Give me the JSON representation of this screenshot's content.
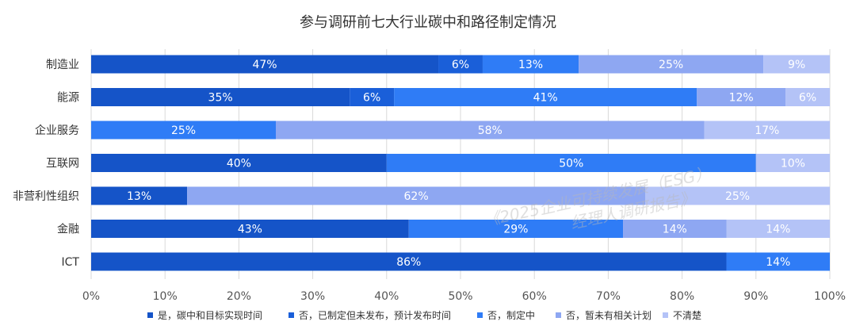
{
  "chart_data": {
    "type": "bar",
    "orientation": "horizontal",
    "stacked": true,
    "title": "参与调研前七大行业碳中和路径制定情况",
    "categories": [
      "制造业",
      "能源",
      "企业服务",
      "互联网",
      "非营利性组织",
      "金融",
      "ICT"
    ],
    "series": [
      {
        "name": "是，碳中和目标实现时间",
        "color": "#1554c8",
        "values": [
          47,
          35,
          0,
          40,
          13,
          43,
          86
        ]
      },
      {
        "name": "否，已制定但未发布，预计发布时间",
        "color": "#1a5fd9",
        "values": [
          6,
          6,
          0,
          0,
          0,
          0,
          0
        ]
      },
      {
        "name": "否，制定中",
        "color": "#2f7cf6",
        "values": [
          13,
          41,
          25,
          50,
          0,
          29,
          14
        ]
      },
      {
        "name": "否，暂未有相关计划",
        "color": "#8ea7f2",
        "values": [
          25,
          12,
          58,
          0,
          62,
          14,
          0
        ]
      },
      {
        "name": "不清楚",
        "color": "#b4c3f7",
        "values": [
          9,
          6,
          17,
          10,
          25,
          14,
          0
        ]
      }
    ],
    "xlim": [
      0,
      100
    ],
    "xticks": [
      "0%",
      "10%",
      "20%",
      "30%",
      "40%",
      "50%",
      "60%",
      "70%",
      "80%",
      "90%",
      "100%"
    ],
    "legend_position": "bottom",
    "grid": "vertical"
  },
  "watermark": {
    "line1": "《2025企业可持续发展（ESG）",
    "line2": "经理人调研报告》"
  }
}
